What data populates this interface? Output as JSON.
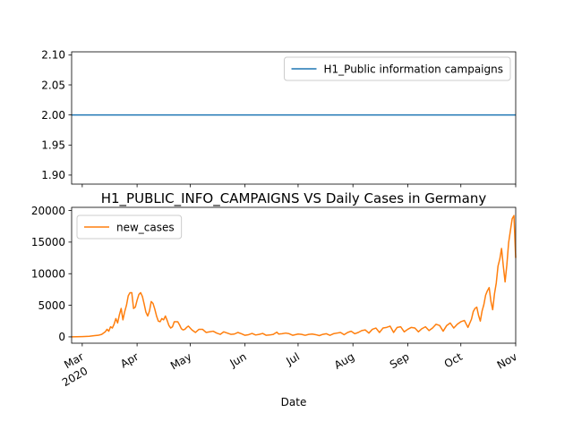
{
  "chart_data": [
    {
      "type": "line",
      "title": "",
      "xlabel": "",
      "ylabel": "",
      "ylim": [
        1.885,
        2.105
      ],
      "yticks": [
        "1.90",
        "1.95",
        "2.00",
        "2.05",
        "2.10"
      ],
      "ytick_values": [
        1.9,
        1.95,
        2.0,
        2.05,
        2.1
      ],
      "legend_position": "upper-right",
      "grid": false,
      "series": [
        {
          "name": "H1_Public information campaigns",
          "color": "#1f77b4",
          "x": [
            "2020-02-24",
            "2020-11-01"
          ],
          "values": [
            2,
            2
          ]
        }
      ]
    },
    {
      "type": "line",
      "title": "H1_PUBLIC_INFO_CAMPAIGNS VS Daily Cases in Germany",
      "xlabel": "Date",
      "ylabel": "",
      "ylim": [
        -1000,
        20500
      ],
      "yticks": [
        "0",
        "5000",
        "10000",
        "15000",
        "20000"
      ],
      "ytick_values": [
        0,
        5000,
        10000,
        15000,
        20000
      ],
      "xlim": [
        "2020-02-24",
        "2020-11-01"
      ],
      "xticks": [
        {
          "date": "2020-03-01",
          "label": "Mar",
          "sublabel": "2020"
        },
        {
          "date": "2020-04-01",
          "label": "Apr",
          "sublabel": ""
        },
        {
          "date": "2020-05-01",
          "label": "May",
          "sublabel": ""
        },
        {
          "date": "2020-06-01",
          "label": "Jun",
          "sublabel": ""
        },
        {
          "date": "2020-07-01",
          "label": "Jul",
          "sublabel": ""
        },
        {
          "date": "2020-08-01",
          "label": "Aug",
          "sublabel": ""
        },
        {
          "date": "2020-09-01",
          "label": "Sep",
          "sublabel": ""
        },
        {
          "date": "2020-10-01",
          "label": "Oct",
          "sublabel": ""
        },
        {
          "date": "2020-11-01",
          "label": "Nov",
          "sublabel": ""
        }
      ],
      "legend_position": "upper-left",
      "grid": false,
      "series": [
        {
          "name": "new_cases",
          "color": "#ff7f0e",
          "points": [
            [
              "2020-02-24",
              0
            ],
            [
              "2020-03-01",
              50
            ],
            [
              "2020-03-05",
              100
            ],
            [
              "2020-03-08",
              200
            ],
            [
              "2020-03-10",
              250
            ],
            [
              "2020-03-12",
              400
            ],
            [
              "2020-03-14",
              800
            ],
            [
              "2020-03-15",
              1200
            ],
            [
              "2020-03-16",
              900
            ],
            [
              "2020-03-17",
              1600
            ],
            [
              "2020-03-18",
              1400
            ],
            [
              "2020-03-19",
              2000
            ],
            [
              "2020-03-20",
              2900
            ],
            [
              "2020-03-21",
              2200
            ],
            [
              "2020-03-22",
              3500
            ],
            [
              "2020-03-23",
              4500
            ],
            [
              "2020-03-24",
              2700
            ],
            [
              "2020-03-25",
              4000
            ],
            [
              "2020-03-26",
              5000
            ],
            [
              "2020-03-27",
              6500
            ],
            [
              "2020-03-28",
              7000
            ],
            [
              "2020-03-29",
              7000
            ],
            [
              "2020-03-30",
              4500
            ],
            [
              "2020-03-31",
              4700
            ],
            [
              "2020-04-01",
              5800
            ],
            [
              "2020-04-02",
              6700
            ],
            [
              "2020-04-03",
              7000
            ],
            [
              "2020-04-04",
              6400
            ],
            [
              "2020-04-05",
              5200
            ],
            [
              "2020-04-06",
              3900
            ],
            [
              "2020-04-07",
              3300
            ],
            [
              "2020-04-08",
              4100
            ],
            [
              "2020-04-09",
              5600
            ],
            [
              "2020-04-10",
              5300
            ],
            [
              "2020-04-11",
              4400
            ],
            [
              "2020-04-12",
              3300
            ],
            [
              "2020-04-13",
              2500
            ],
            [
              "2020-04-14",
              2400
            ],
            [
              "2020-04-15",
              2900
            ],
            [
              "2020-04-16",
              2700
            ],
            [
              "2020-04-17",
              3300
            ],
            [
              "2020-04-18",
              2600
            ],
            [
              "2020-04-19",
              1800
            ],
            [
              "2020-04-20",
              1400
            ],
            [
              "2020-04-21",
              1600
            ],
            [
              "2020-04-22",
              2400
            ],
            [
              "2020-04-23",
              2400
            ],
            [
              "2020-04-24",
              2400
            ],
            [
              "2020-04-25",
              1900
            ],
            [
              "2020-04-26",
              1300
            ],
            [
              "2020-04-27",
              1100
            ],
            [
              "2020-04-28",
              1200
            ],
            [
              "2020-04-29",
              1500
            ],
            [
              "2020-04-30",
              1700
            ],
            [
              "2020-05-02",
              1100
            ],
            [
              "2020-05-04",
              700
            ],
            [
              "2020-05-06",
              1200
            ],
            [
              "2020-05-08",
              1200
            ],
            [
              "2020-05-10",
              700
            ],
            [
              "2020-05-12",
              800
            ],
            [
              "2020-05-14",
              900
            ],
            [
              "2020-05-16",
              600
            ],
            [
              "2020-05-18",
              400
            ],
            [
              "2020-05-20",
              800
            ],
            [
              "2020-05-22",
              600
            ],
            [
              "2020-05-24",
              400
            ],
            [
              "2020-05-26",
              450
            ],
            [
              "2020-05-28",
              700
            ],
            [
              "2020-05-30",
              500
            ],
            [
              "2020-06-01",
              250
            ],
            [
              "2020-06-03",
              350
            ],
            [
              "2020-06-05",
              550
            ],
            [
              "2020-06-07",
              300
            ],
            [
              "2020-06-09",
              400
            ],
            [
              "2020-06-11",
              550
            ],
            [
              "2020-06-13",
              250
            ],
            [
              "2020-06-15",
              300
            ],
            [
              "2020-06-17",
              400
            ],
            [
              "2020-06-19",
              750
            ],
            [
              "2020-06-20",
              450
            ],
            [
              "2020-06-22",
              500
            ],
            [
              "2020-06-24",
              600
            ],
            [
              "2020-06-26",
              500
            ],
            [
              "2020-06-28",
              250
            ],
            [
              "2020-07-01",
              450
            ],
            [
              "2020-07-03",
              400
            ],
            [
              "2020-07-05",
              250
            ],
            [
              "2020-07-07",
              400
            ],
            [
              "2020-07-09",
              450
            ],
            [
              "2020-07-11",
              350
            ],
            [
              "2020-07-13",
              200
            ],
            [
              "2020-07-15",
              400
            ],
            [
              "2020-07-17",
              500
            ],
            [
              "2020-07-19",
              250
            ],
            [
              "2020-07-21",
              500
            ],
            [
              "2020-07-23",
              600
            ],
            [
              "2020-07-25",
              700
            ],
            [
              "2020-07-27",
              350
            ],
            [
              "2020-07-29",
              700
            ],
            [
              "2020-07-31",
              900
            ],
            [
              "2020-08-02",
              500
            ],
            [
              "2020-08-04",
              700
            ],
            [
              "2020-08-06",
              1000
            ],
            [
              "2020-08-08",
              1100
            ],
            [
              "2020-08-10",
              600
            ],
            [
              "2020-08-12",
              1200
            ],
            [
              "2020-08-14",
              1400
            ],
            [
              "2020-08-16",
              700
            ],
            [
              "2020-08-18",
              1400
            ],
            [
              "2020-08-20",
              1500
            ],
            [
              "2020-08-22",
              1700
            ],
            [
              "2020-08-24",
              700
            ],
            [
              "2020-08-26",
              1500
            ],
            [
              "2020-08-28",
              1600
            ],
            [
              "2020-08-30",
              800
            ],
            [
              "2020-09-01",
              1200
            ],
            [
              "2020-09-03",
              1500
            ],
            [
              "2020-09-05",
              1400
            ],
            [
              "2020-09-07",
              800
            ],
            [
              "2020-09-09",
              1300
            ],
            [
              "2020-09-11",
              1600
            ],
            [
              "2020-09-13",
              1000
            ],
            [
              "2020-09-15",
              1400
            ],
            [
              "2020-09-17",
              2000
            ],
            [
              "2020-09-19",
              1800
            ],
            [
              "2020-09-21",
              900
            ],
            [
              "2020-09-23",
              1800
            ],
            [
              "2020-09-25",
              2200
            ],
            [
              "2020-09-27",
              1400
            ],
            [
              "2020-09-29",
              2000
            ],
            [
              "2020-10-01",
              2400
            ],
            [
              "2020-10-03",
              2600
            ],
            [
              "2020-10-05",
              1500
            ],
            [
              "2020-10-07",
              2800
            ],
            [
              "2020-10-08",
              4000
            ],
            [
              "2020-10-09",
              4500
            ],
            [
              "2020-10-10",
              4700
            ],
            [
              "2020-10-11",
              3400
            ],
            [
              "2020-10-12",
              2500
            ],
            [
              "2020-10-13",
              4100
            ],
            [
              "2020-10-14",
              5100
            ],
            [
              "2020-10-15",
              6600
            ],
            [
              "2020-10-16",
              7300
            ],
            [
              "2020-10-17",
              7800
            ],
            [
              "2020-10-18",
              5600
            ],
            [
              "2020-10-19",
              4300
            ],
            [
              "2020-10-20",
              6800
            ],
            [
              "2020-10-21",
              8500
            ],
            [
              "2020-10-22",
              11200
            ],
            [
              "2020-10-23",
              12300
            ],
            [
              "2020-10-24",
              14000
            ],
            [
              "2020-10-25",
              11200
            ],
            [
              "2020-10-26",
              8700
            ],
            [
              "2020-10-27",
              11400
            ],
            [
              "2020-10-28",
              14900
            ],
            [
              "2020-10-29",
              16800
            ],
            [
              "2020-10-30",
              18700
            ],
            [
              "2020-10-31",
              19200
            ],
            [
              "2020-11-01",
              12500
            ]
          ]
        }
      ]
    }
  ]
}
